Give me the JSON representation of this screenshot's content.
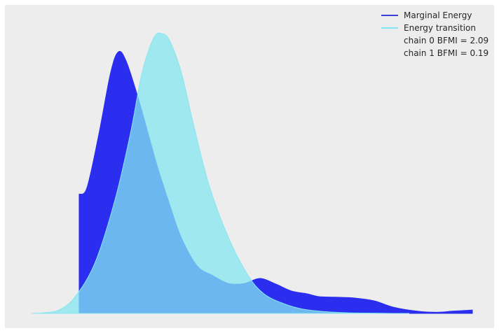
{
  "chart_data": {
    "type": "area",
    "title": "",
    "xlabel": "",
    "ylabel": "",
    "grid": false,
    "legend_placement": "top-right",
    "colors": {
      "background": "#EDEDED",
      "marginal_energy": "#2B2EEE",
      "energy_transition": "#84E6F0",
      "overlap": "#58B7F2"
    },
    "series": [
      {
        "name": "Marginal Energy",
        "color": "#2B2EEE",
        "x": [
          0.0,
          0.02,
          0.05,
          0.08,
          0.1,
          0.12,
          0.15,
          0.18,
          0.2,
          0.23,
          0.26,
          0.3,
          0.34,
          0.38,
          0.42,
          0.46,
          0.5,
          0.54,
          0.58,
          0.61,
          0.65,
          0.7,
          0.75,
          0.8,
          0.86,
          0.91,
          0.95,
          1.0
        ],
        "density": [
          0.426,
          0.45,
          0.64,
          0.86,
          0.935,
          0.9,
          0.77,
          0.62,
          0.52,
          0.39,
          0.27,
          0.17,
          0.135,
          0.107,
          0.107,
          0.125,
          0.105,
          0.08,
          0.07,
          0.06,
          0.058,
          0.055,
          0.045,
          0.022,
          0.008,
          0.004,
          0.008,
          0.012
        ]
      },
      {
        "name": "Energy transition",
        "color": "#84E6F0",
        "x": [
          -0.12,
          -0.09,
          -0.05,
          -0.01,
          0.04,
          0.09,
          0.13,
          0.16,
          0.19,
          0.21,
          0.23,
          0.26,
          0.29,
          0.33,
          0.38,
          0.43,
          0.47,
          0.52,
          0.57,
          0.63,
          0.69,
          0.75,
          0.8,
          0.84
        ],
        "density": [
          0.0,
          0.002,
          0.013,
          0.06,
          0.18,
          0.4,
          0.64,
          0.86,
          0.985,
          1.0,
          0.975,
          0.86,
          0.68,
          0.46,
          0.27,
          0.135,
          0.07,
          0.035,
          0.015,
          0.006,
          0.002,
          0.001,
          0.0,
          0.0
        ]
      }
    ],
    "annotations": [
      {
        "chain": "chain  0 BFMI = 2.09"
      },
      {
        "chain": "chain  1 BFMI = 0.19"
      }
    ],
    "xlim": [
      -0.13,
      1.0
    ],
    "ylim": [
      0,
      1.05
    ]
  },
  "legend": {
    "items": [
      {
        "label": "Marginal Energy",
        "type": "line",
        "color": "#3A3FD6"
      },
      {
        "label": "Energy transition",
        "type": "line",
        "color": "#84E6F0"
      },
      {
        "label": "chain  0 BFMI = 2.09",
        "type": "text"
      },
      {
        "label": "chain  1 BFMI = 0.19",
        "type": "text"
      }
    ]
  }
}
